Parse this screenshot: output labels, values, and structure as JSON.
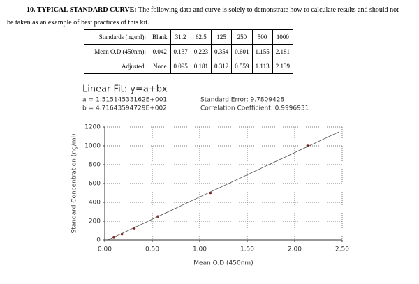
{
  "heading": {
    "label": "10. TYPICAL STANDARD CURVE:",
    "text": "The following data and curve is solely to demonstrate how to calculate results and should not be taken as an example of best practices of this kit."
  },
  "table": {
    "rows": [
      [
        "Standards (ng/ml):",
        "Blank",
        "31.2",
        "62.5",
        "125",
        "250",
        "500",
        "1000"
      ],
      [
        "Mean O.D (450nm):",
        "0.042",
        "0.137",
        "0.223",
        "0.354",
        "0.601",
        "1.155",
        "2.181"
      ],
      [
        "Adjusted:",
        "None",
        "0.095",
        "0.181",
        "0.312",
        "0.559",
        "1.113",
        "2.139"
      ]
    ]
  },
  "chart_data": {
    "type": "scatter",
    "title": "Linear Fit: y=a+bx",
    "annotations": [
      "a =-1.51514533162E+001",
      "b = 4.71643594729E+002",
      "Standard Error: 9.7809428",
      "Correlation Coefficient: 0.9996931"
    ],
    "x_label": "Mean O.D (450nm)",
    "y_label": "Standard Concentration (ng/ml)",
    "series": [
      {
        "color": "#8b1a1a",
        "x": [
          0.095,
          0.181,
          0.312,
          0.559,
          1.113,
          2.139
        ],
        "values": [
          31.2,
          62.5,
          125,
          250,
          500,
          1000
        ]
      },
      {
        "type": "line",
        "color": "#555555",
        "x": [
          0.032,
          2.47
        ],
        "values": [
          0,
          1150
        ]
      }
    ],
    "xlim": [
      0,
      2.5
    ],
    "xticks": [
      {
        "value": 0,
        "label": "0.00"
      },
      {
        "value": 0.5,
        "label": "0.50"
      },
      {
        "value": 1,
        "label": "1.00"
      },
      {
        "value": 1.5,
        "label": "1.50"
      },
      {
        "value": 2,
        "label": "2.00"
      },
      {
        "value": 2.5,
        "label": "2.50"
      }
    ],
    "ylim": [
      0,
      1200
    ],
    "yticks": [
      0,
      200,
      400,
      600,
      800,
      1000,
      1200
    ],
    "grid": true
  }
}
